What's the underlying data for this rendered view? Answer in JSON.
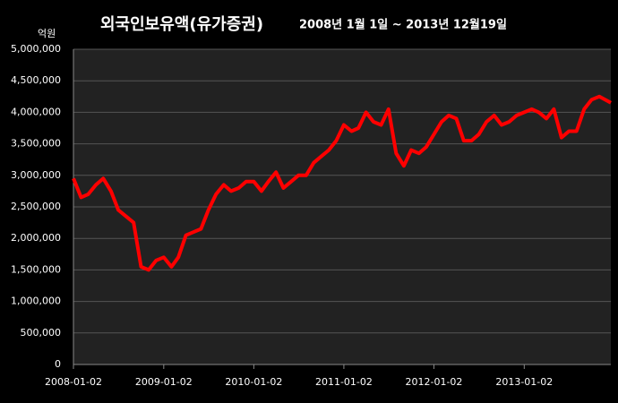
{
  "chart_data": {
    "type": "line",
    "title": "외국인보유액(유가증권)",
    "subtitle": "2008년 1월 1일 ~ 2013년 12월19일",
    "y_unit": "억원",
    "x": [
      "2008-01-02",
      "2008-02-02",
      "2008-03-02",
      "2008-04-02",
      "2008-05-02",
      "2008-06-02",
      "2008-07-02",
      "2008-08-02",
      "2008-09-02",
      "2008-10-02",
      "2008-11-02",
      "2008-12-02",
      "2009-01-02",
      "2009-02-02",
      "2009-03-02",
      "2009-04-02",
      "2009-05-02",
      "2009-06-02",
      "2009-07-02",
      "2009-08-02",
      "2009-09-02",
      "2009-10-02",
      "2009-11-02",
      "2009-12-02",
      "2010-01-02",
      "2010-02-02",
      "2010-03-02",
      "2010-04-02",
      "2010-05-02",
      "2010-06-02",
      "2010-07-02",
      "2010-08-02",
      "2010-09-02",
      "2010-10-02",
      "2010-11-02",
      "2010-12-02",
      "2011-01-02",
      "2011-02-02",
      "2011-03-02",
      "2011-04-02",
      "2011-05-02",
      "2011-06-02",
      "2011-07-02",
      "2011-08-02",
      "2011-09-02",
      "2011-10-02",
      "2011-11-02",
      "2011-12-02",
      "2012-01-02",
      "2012-02-02",
      "2012-03-02",
      "2012-04-02",
      "2012-05-02",
      "2012-06-02",
      "2012-07-02",
      "2012-08-02",
      "2012-09-02",
      "2012-10-02",
      "2012-11-02",
      "2012-12-02",
      "2013-01-02",
      "2013-02-02",
      "2013-03-02",
      "2013-04-02",
      "2013-05-02",
      "2013-06-02",
      "2013-07-02",
      "2013-08-02",
      "2013-09-02",
      "2013-10-02",
      "2013-11-02",
      "2013-12-19"
    ],
    "series": [
      {
        "name": "외국인보유액",
        "color": "#ff0000",
        "values": [
          2950000,
          2650000,
          2700000,
          2850000,
          2950000,
          2750000,
          2450000,
          2350000,
          2250000,
          1550000,
          1500000,
          1650000,
          1700000,
          1550000,
          1700000,
          2050000,
          2100000,
          2150000,
          2450000,
          2700000,
          2850000,
          2750000,
          2800000,
          2900000,
          2900000,
          2750000,
          2900000,
          3050000,
          2800000,
          2900000,
          3000000,
          3000000,
          3200000,
          3300000,
          3400000,
          3550000,
          3800000,
          3700000,
          3750000,
          4000000,
          3850000,
          3800000,
          4050000,
          3350000,
          3150000,
          3400000,
          3350000,
          3450000,
          3650000,
          3850000,
          3950000,
          3900000,
          3550000,
          3550000,
          3650000,
          3850000,
          3950000,
          3800000,
          3850000,
          3950000,
          4000000,
          4050000,
          4000000,
          3900000,
          4050000,
          3600000,
          3700000,
          3700000,
          4050000,
          4200000,
          4250000,
          4150000
        ]
      }
    ],
    "xlim": [
      "2008-01-02",
      "2013-12-19"
    ],
    "xticks": [
      "2008-01-02",
      "2009-01-02",
      "2010-01-02",
      "2011-01-02",
      "2012-01-02",
      "2013-01-02"
    ],
    "ylim": [
      0,
      5000000
    ],
    "yticks": [
      0,
      {
        "value": 500000,
        "label": "500,000"
      },
      {
        "value": 1000000,
        "label": "1,000,000"
      },
      {
        "value": 1500000,
        "label": "1,500,000"
      },
      {
        "value": 2000000,
        "label": "2,000,000"
      },
      {
        "value": 2500000,
        "label": "2,500,000"
      },
      {
        "value": 3000000,
        "label": "3,000,000"
      },
      {
        "value": 3500000,
        "label": "3,500,000"
      },
      {
        "value": 4000000,
        "label": "4,000,000"
      },
      {
        "value": 4500000,
        "label": "4,500,000"
      },
      {
        "value": 5000000,
        "label": "5,000,000"
      }
    ],
    "grid": true
  }
}
